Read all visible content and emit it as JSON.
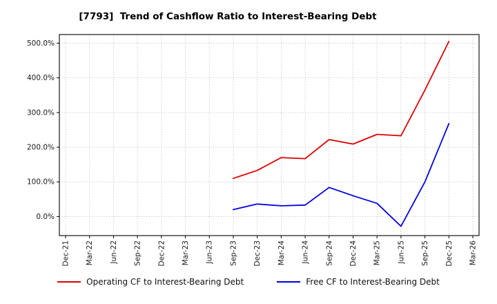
{
  "title": "[7793]  Trend of Cashflow Ratio to Interest-Bearing Debt",
  "chart_data": {
    "type": "line",
    "title": "[7793]  Trend of Cashflow Ratio to Interest-Bearing Debt",
    "xlabel": "",
    "ylabel": "",
    "grid": true,
    "legend_position": "bottom",
    "ylim": [
      -55,
      525
    ],
    "y_ticks": [
      0,
      100,
      200,
      300,
      400,
      500
    ],
    "y_tick_suffix": "%",
    "categories": [
      "Dec-21",
      "Mar-22",
      "Jun-22",
      "Sep-22",
      "Dec-22",
      "Mar-23",
      "Jun-23",
      "Sep-23",
      "Dec-23",
      "Mar-24",
      "Jun-24",
      "Sep-24",
      "Dec-24",
      "Mar-25",
      "Jun-25",
      "Sep-25",
      "Dec-25",
      "Mar-26"
    ],
    "series": [
      {
        "name": "Operating CF to Interest-Bearing Debt",
        "color": "#dd0000",
        "values": [
          null,
          null,
          null,
          null,
          null,
          null,
          null,
          110,
          133,
          170,
          167,
          222,
          209,
          237,
          233,
          365,
          505,
          null
        ]
      },
      {
        "name": "Free CF to Interest-Bearing Debt",
        "color": "#0000dd",
        "values": [
          null,
          null,
          null,
          null,
          null,
          null,
          null,
          20,
          36,
          31,
          33,
          84,
          60,
          38,
          -28,
          100,
          268,
          null
        ]
      }
    ]
  }
}
